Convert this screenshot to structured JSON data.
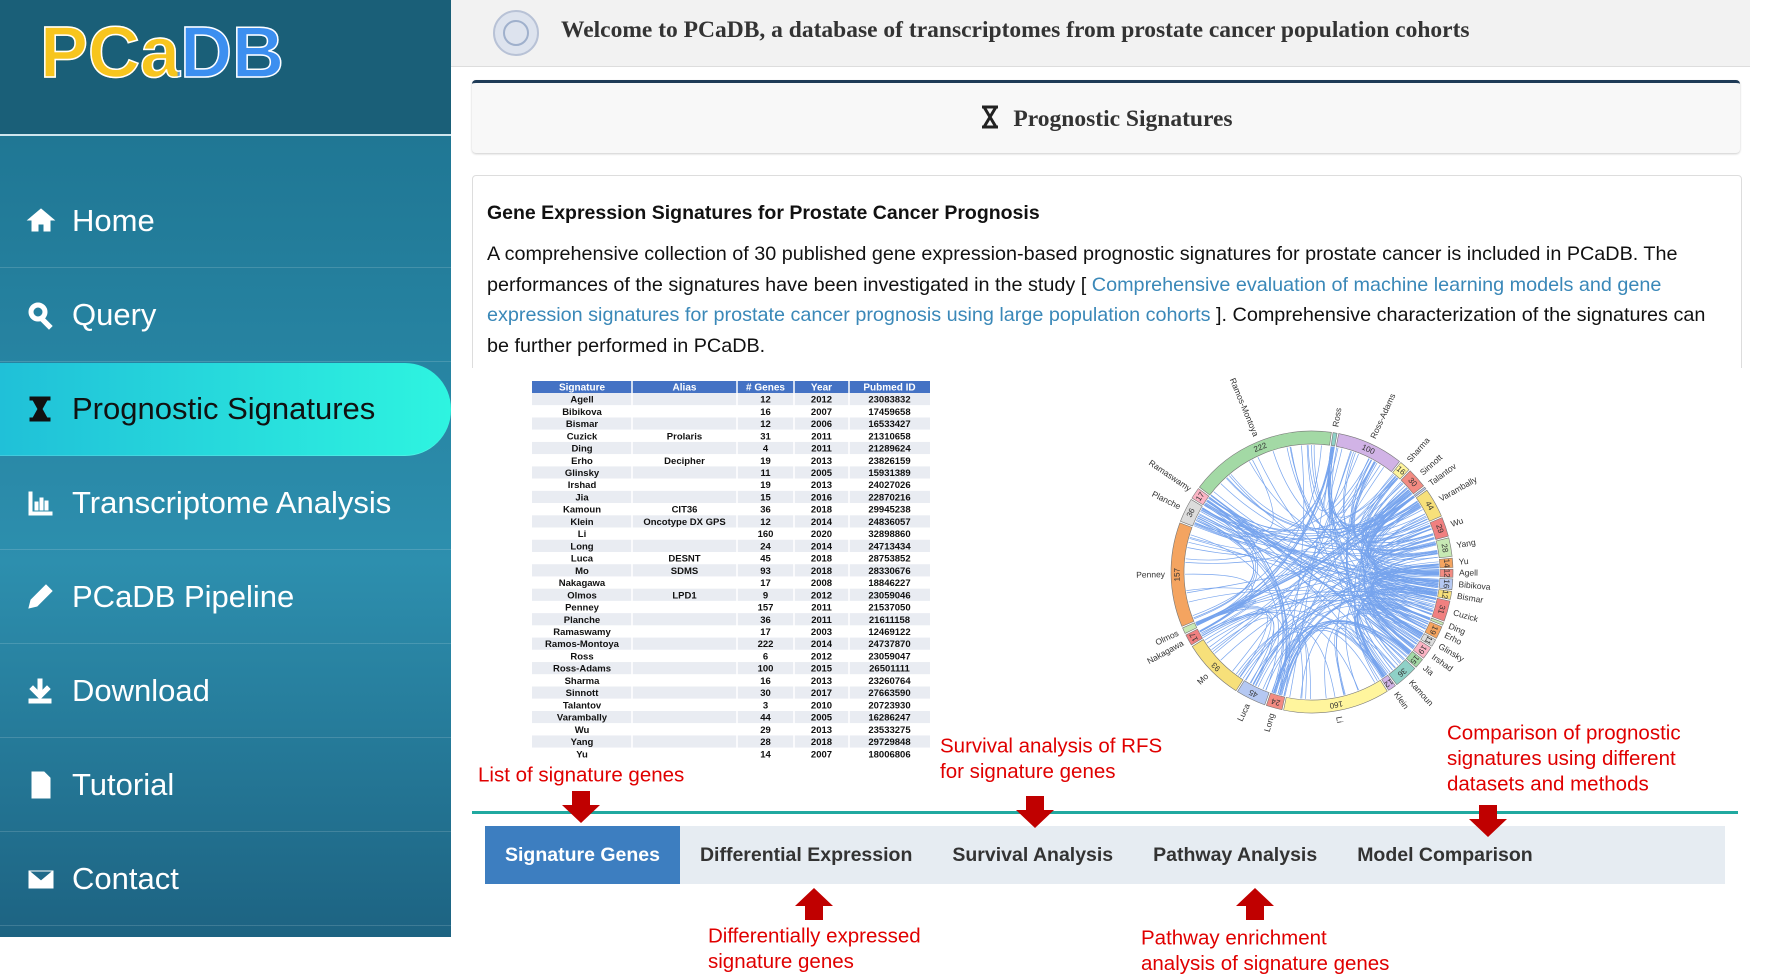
{
  "sidebar": {
    "logo": "PCaDB",
    "active": 2,
    "nav": [
      "Home",
      "Query",
      "Prognostic Signatures",
      "Transcriptome Analysis",
      "PCaDB Pipeline",
      "Download",
      "Tutorial",
      "Contact"
    ]
  },
  "header": {
    "title": "Welcome to PCaDB, a database of transcriptomes from prostate cancer population cohorts"
  },
  "panel": {
    "title": "Prognostic Signatures"
  },
  "card": {
    "heading": "Gene Expression Signatures for Prostate Cancer Prognosis",
    "text_before": "A comprehensive collection of 30 published gene expression-based prognostic signatures for prostate cancer is included in PCaDB. The performances of the signatures have been investigated in the study [ ",
    "link": "Comprehensive evaluation of machine learning models and gene expression signatures for prostate cancer prognosis using large population cohorts",
    "text_after": " ]. Comprehensive characterization of the signatures can be further performed in PCaDB."
  },
  "figure": {
    "table": {
      "columns": [
        "Signature",
        "Alias",
        "# Genes",
        "Year",
        "Pubmed ID"
      ],
      "rows": [
        [
          "Agell",
          null,
          12,
          2012,
          23083832
        ],
        [
          "Bibikova",
          null,
          16,
          2007,
          17459658
        ],
        [
          "Bismar",
          null,
          12,
          2006,
          16533427
        ],
        [
          "Cuzick",
          "Prolaris",
          31,
          2011,
          21310658
        ],
        [
          "Ding",
          null,
          4,
          2011,
          21289624
        ],
        [
          "Erho",
          "Decipher",
          19,
          2013,
          23826159
        ],
        [
          "Glinsky",
          null,
          11,
          2005,
          15931389
        ],
        [
          "Irshad",
          null,
          19,
          2013,
          24027026
        ],
        [
          "Jia",
          null,
          15,
          2016,
          22870216
        ],
        [
          "Kamoun",
          "CIT36",
          36,
          2018,
          29945238
        ],
        [
          "Klein",
          "Oncotype DX GPS",
          12,
          2014,
          24836057
        ],
        [
          "Li",
          null,
          160,
          2020,
          32898860
        ],
        [
          "Long",
          null,
          24,
          2014,
          24713434
        ],
        [
          "Luca",
          "DESNT",
          45,
          2018,
          28753852
        ],
        [
          "Mo",
          "SDMS",
          93,
          2018,
          28330676
        ],
        [
          "Nakagawa",
          null,
          17,
          2008,
          18846227
        ],
        [
          "Olmos",
          "LPD1",
          9,
          2012,
          23059046
        ],
        [
          "Penney",
          null,
          157,
          2011,
          21537050
        ],
        [
          "Planche",
          null,
          36,
          2011,
          21611158
        ],
        [
          "Ramaswamy",
          null,
          17,
          2003,
          12469122
        ],
        [
          "Ramos-Montoya",
          null,
          222,
          2014,
          24737870
        ],
        [
          "Ross",
          null,
          6,
          2012,
          23059047
        ],
        [
          "Ross-Adams",
          null,
          100,
          2015,
          26501111
        ],
        [
          "Sharma",
          null,
          16,
          2013,
          23260764
        ],
        [
          "Sinnott",
          null,
          30,
          2017,
          27663590
        ],
        [
          "Talantov",
          null,
          3,
          2010,
          20723930
        ],
        [
          "Varambally",
          null,
          44,
          2005,
          16286247
        ],
        [
          "Wu",
          null,
          29,
          2013,
          23533275
        ],
        [
          "Yang",
          null,
          28,
          2018,
          29729848
        ],
        [
          "Yu",
          null,
          14,
          2007,
          18006806
        ]
      ]
    },
    "annotations": [
      [
        "List of signature genes"
      ],
      [
        "Survival analysis of RFS",
        "for signature genes"
      ],
      [
        "Comparison of prognostic",
        "signatures using different",
        "datasets and methods"
      ],
      [
        "Differentially expressed",
        "signature genes"
      ],
      [
        "Pathway enrichment",
        "analysis of signature genes"
      ]
    ]
  },
  "tabs": {
    "active": 0,
    "items": [
      "Signature Genes",
      "Differential Expression",
      "Survival Analysis",
      "Pathway Analysis",
      "Model Comparison"
    ]
  }
}
